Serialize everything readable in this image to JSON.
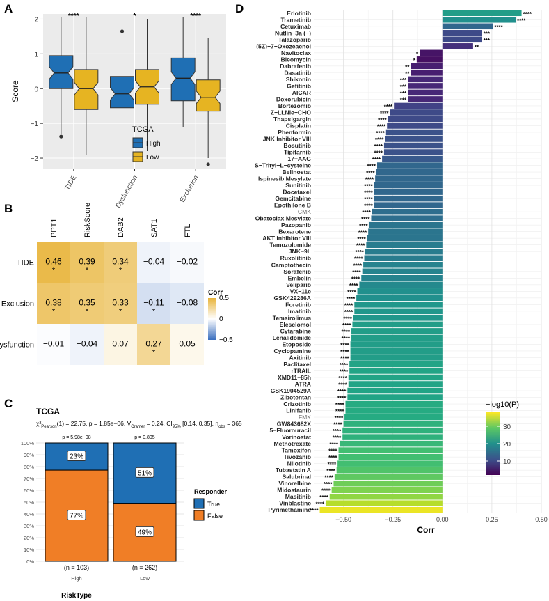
{
  "figure": {
    "colors": {
      "high": "#1F6FB4",
      "low": "#E6B422",
      "true": "#1F6FB4",
      "false": "#F07E26",
      "corr_pos": "#E8B43A",
      "corr_neg": "#3A6FBF",
      "panel_bg": "#EBEBEB",
      "grid": "#ffffff"
    }
  },
  "chart_data": [
    {
      "panel": "A",
      "type": "boxplot",
      "ylabel": "Score",
      "ylim": [
        -2.3,
        2.15
      ],
      "yticks": [
        -2,
        -1,
        0,
        1,
        2
      ],
      "categories": [
        "TIDE",
        "Dysfunction",
        "Exclusion"
      ],
      "significance": [
        "****",
        "*",
        "****"
      ],
      "legend": {
        "title": "TCGA",
        "entries": [
          "High",
          "Low"
        ]
      },
      "series": [
        {
          "name": "High",
          "boxes": [
            {
              "min": -1.3,
              "q1": 0.0,
              "median": 0.45,
              "q3": 0.95,
              "max": 2.05,
              "outliers": [
                -1.38
              ]
            },
            {
              "min": -1.25,
              "q1": -0.55,
              "median": -0.15,
              "q3": 0.35,
              "max": 1.6,
              "outliers": [
                1.65
              ]
            },
            {
              "min": -1.1,
              "q1": -0.35,
              "median": 0.3,
              "q3": 0.88,
              "max": 2.05,
              "outliers": []
            }
          ]
        },
        {
          "name": "Low",
          "boxes": [
            {
              "min": -1.9,
              "q1": -0.6,
              "median": 0.0,
              "q3": 0.55,
              "max": 2.05,
              "outliers": []
            },
            {
              "min": -1.8,
              "q1": -0.45,
              "median": 0.05,
              "q3": 0.55,
              "max": 2.0,
              "outliers": []
            },
            {
              "min": -2.0,
              "q1": -0.65,
              "median": -0.25,
              "q3": 0.25,
              "max": 1.45,
              "outliers": [
                -2.18
              ]
            }
          ]
        }
      ]
    },
    {
      "panel": "B",
      "type": "heatmap",
      "columns": [
        "PPT1",
        "RiskScore",
        "DAB2",
        "SAT1",
        "FTL"
      ],
      "rows": [
        "TIDE",
        "Exclusion",
        "Dysfunction"
      ],
      "values": [
        [
          0.46,
          0.39,
          0.34,
          -0.04,
          -0.02
        ],
        [
          0.38,
          0.35,
          0.33,
          -0.11,
          -0.08
        ],
        [
          -0.01,
          -0.04,
          0.07,
          0.27,
          0.05
        ]
      ],
      "labels": [
        [
          "0.46",
          "0.39",
          "0.34",
          "−0.04",
          "−0.02"
        ],
        [
          "0.38",
          "0.35",
          "0.33",
          "−0.11",
          "−0.08"
        ],
        [
          "−0.01",
          "−0.04",
          "0.07",
          "0.27",
          "0.05"
        ]
      ],
      "stars": [
        [
          "*",
          "*",
          "*",
          "",
          ""
        ],
        [
          "*",
          "*",
          "*",
          "*",
          ""
        ],
        [
          "",
          "",
          "",
          "*",
          ""
        ]
      ],
      "legend": {
        "title": "Corr",
        "ticks": [
          0.5,
          0,
          -0.5
        ],
        "tick_labels": [
          "0.5",
          "0",
          "−0.5"
        ]
      }
    },
    {
      "panel": "C",
      "type": "stacked_bar",
      "title": "TCGA",
      "stats_prefix": "χ²",
      "stats_sub": "Pearson",
      "stats_mid": "(1) = 22.75, p = 1.85e−06, ",
      "stats_v": "V",
      "stats_v_sub": "Cramer",
      "stats_ci": " = 0.24, CI",
      "stats_ci_sub": "95%",
      "stats_end": " [0.14, 0.35], n",
      "stats_n_sub": "obs",
      "stats_n": " = 365",
      "xlabel": "RiskType",
      "categories": [
        "High",
        "Low"
      ],
      "counts": [
        "(n = 103)",
        "(n = 262)"
      ],
      "pvalues": [
        "p = 5.98e−08",
        "p = 0.805"
      ],
      "yticks": [
        "0%",
        "10%",
        "20%",
        "30%",
        "40%",
        "50%",
        "60%",
        "70%",
        "80%",
        "90%",
        "100%"
      ],
      "series": [
        {
          "name": "True",
          "values": [
            23,
            51
          ],
          "labels": [
            "23%",
            "51%"
          ]
        },
        {
          "name": "False",
          "values": [
            77,
            49
          ],
          "labels": [
            "77%",
            "49%"
          ]
        }
      ],
      "legend": {
        "title": "Responder",
        "entries": [
          "True",
          "False"
        ]
      }
    },
    {
      "panel": "D",
      "type": "bar",
      "orientation": "horizontal",
      "xlabel": "Corr",
      "xlim": [
        -0.65,
        0.5
      ],
      "xticks": [
        -0.5,
        -0.25,
        0.0,
        0.25,
        0.5
      ],
      "xtick_labels": [
        "−0.50",
        "−0.25",
        "0.00",
        "0.25",
        "0.50"
      ],
      "legend": {
        "title": "−log10(P)",
        "ticks": [
          10,
          20,
          30
        ],
        "range": [
          2,
          38
        ]
      },
      "categories": [
        "Erlotinib",
        "Trametinib",
        "Cetuximab",
        "Nutlin−3a (−)",
        "Talazoparib",
        "(5Z)−7−Oxozeaenol",
        "Navitoclax",
        "Bleomycin",
        "Dabrafenib",
        "Dasatinib",
        "Shikonin",
        "Gefitinib",
        "AICAR",
        "Doxorubicin",
        "Bortezomib",
        "Z−LLNle−CHO",
        "Thapsigargin",
        "Cisplatin",
        "Phenformin",
        "JNK Inhibitor VIII",
        "Bosutinib",
        "Tipifarnib",
        "17−AAG",
        "S−Trityl−L−cysteine",
        "Belinostat",
        "Ispinesib Mesylate",
        "Sunitinib",
        "Docetaxel",
        "Gemcitabine",
        "Epothilone B",
        "CMK",
        "Obatoclax Mesylate",
        "Pazopanib",
        "Bexarotene",
        "AKT inhibitor VIII",
        "Temozolomide",
        "JNK−9L",
        "Ruxolitinib",
        "Camptothecin",
        "Sorafenib",
        "Embelin",
        "Veliparib",
        "VX−11e",
        "GSK429286A",
        "Foretinib",
        "Imatinib",
        "Temsirolimus",
        "Elesclomol",
        "Cytarabine",
        "Lenalidomide",
        "Etoposide",
        "Cyclopamine",
        "Axitinib",
        "Paclitaxel",
        "rTRAIL",
        "XMD11−85h",
        "ATRA",
        "GSK1904529A",
        "Zibotentan",
        "Crizotinib",
        "Linifanib",
        "FMK",
        "GW843682X",
        "5−Fluorouracil",
        "Vorinostat",
        "Methotrexate",
        "Tamoxifen",
        "Tivozanib",
        "Nilotinib",
        "Tubastatin A",
        "Salubrinal",
        "Vinorelbine",
        "Midostaurin",
        "Masitinib",
        "Vinblastine",
        "Pyrimethamine"
      ],
      "values": [
        0.4,
        0.37,
        0.255,
        0.2,
        0.2,
        0.155,
        -0.115,
        -0.13,
        -0.16,
        -0.16,
        -0.175,
        -0.175,
        -0.175,
        -0.175,
        -0.245,
        -0.265,
        -0.275,
        -0.28,
        -0.285,
        -0.29,
        -0.295,
        -0.295,
        -0.305,
        -0.33,
        -0.335,
        -0.34,
        -0.345,
        -0.345,
        -0.345,
        -0.345,
        -0.355,
        -0.36,
        -0.37,
        -0.375,
        -0.38,
        -0.385,
        -0.39,
        -0.395,
        -0.4,
        -0.405,
        -0.41,
        -0.42,
        -0.43,
        -0.435,
        -0.445,
        -0.445,
        -0.45,
        -0.455,
        -0.46,
        -0.46,
        -0.465,
        -0.465,
        -0.465,
        -0.47,
        -0.47,
        -0.475,
        -0.475,
        -0.48,
        -0.48,
        -0.49,
        -0.49,
        -0.495,
        -0.5,
        -0.505,
        -0.505,
        -0.52,
        -0.525,
        -0.525,
        -0.53,
        -0.535,
        -0.545,
        -0.55,
        -0.56,
        -0.57,
        -0.59,
        -0.62
      ],
      "neglog10p": [
        22,
        20,
        14,
        10,
        10,
        7,
        4,
        3.5,
        5,
        5,
        6,
        6,
        6,
        6,
        9,
        10,
        10,
        10,
        11,
        11,
        11,
        11,
        12,
        14,
        14,
        14,
        14,
        14,
        14,
        14,
        15,
        15,
        16,
        16,
        16,
        17,
        17,
        17,
        18,
        18,
        18,
        19,
        20,
        20,
        21,
        21,
        21,
        22,
        22,
        22,
        22,
        22,
        22,
        23,
        23,
        23,
        23,
        23,
        23,
        24,
        24,
        24,
        25,
        25,
        25,
        26,
        27,
        27,
        27,
        28,
        29,
        30,
        31,
        32,
        34,
        37
      ],
      "significance": [
        "****",
        "****",
        "****",
        "***",
        "***",
        "**",
        "*",
        "*",
        "**",
        "**",
        "***",
        "***",
        "***",
        "***",
        "****",
        "****",
        "****",
        "****",
        "****",
        "****",
        "****",
        "****",
        "****",
        "****",
        "****",
        "****",
        "****",
        "****",
        "****",
        "****",
        "****",
        "****",
        "****",
        "****",
        "****",
        "****",
        "****",
        "****",
        "****",
        "****",
        "****",
        "****",
        "****",
        "****",
        "****",
        "****",
        "****",
        "****",
        "****",
        "****",
        "****",
        "****",
        "****",
        "****",
        "****",
        "****",
        "****",
        "****",
        "****",
        "****",
        "****",
        "****",
        "****",
        "****",
        "****",
        "****",
        "****",
        "****",
        "****",
        "****",
        "****",
        "****",
        "****",
        "****",
        "****",
        "****"
      ],
      "bold": [
        true,
        true,
        true,
        true,
        true,
        true,
        true,
        true,
        true,
        true,
        true,
        true,
        true,
        true,
        true,
        true,
        true,
        true,
        true,
        true,
        true,
        true,
        true,
        true,
        true,
        true,
        true,
        true,
        true,
        true,
        false,
        true,
        true,
        true,
        true,
        true,
        true,
        true,
        true,
        true,
        true,
        true,
        true,
        true,
        true,
        true,
        true,
        true,
        true,
        true,
        true,
        true,
        true,
        true,
        true,
        true,
        true,
        true,
        true,
        true,
        true,
        false,
        true,
        true,
        true,
        true,
        true,
        true,
        true,
        true,
        true,
        true,
        true,
        true,
        true,
        true
      ]
    }
  ]
}
